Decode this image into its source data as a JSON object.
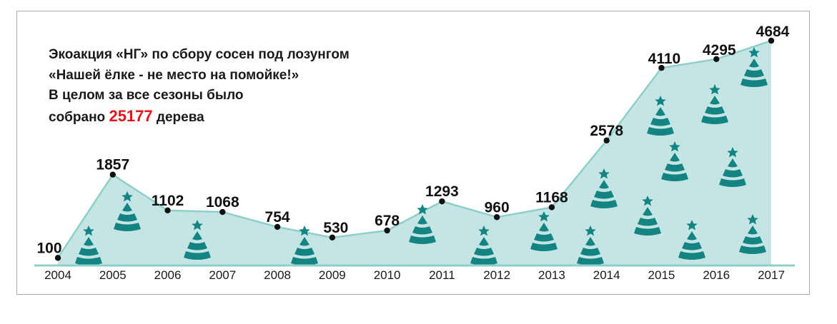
{
  "headline": {
    "line1": "Экоакция «НГ» по сбору сосен под лозунгом",
    "line2": "«Нашей ёлке - не место на помойке!»",
    "line3": "В целом за все сезоны было",
    "line4_prefix": "собрано",
    "total": "25177",
    "line4_suffix": "дерева"
  },
  "colors": {
    "area_fill": "#c4e5e3",
    "area_stroke": "#8fcfca",
    "tree": "#138482",
    "total_highlight": "#e3151b",
    "point": "#111111"
  },
  "chart_data": {
    "type": "area",
    "x": [
      "2004",
      "2005",
      "2006",
      "2007",
      "2008",
      "2009",
      "2010",
      "2011",
      "2012",
      "2013",
      "2014",
      "2015",
      "2016",
      "2017"
    ],
    "values": [
      100,
      1857,
      1102,
      1068,
      754,
      530,
      678,
      1293,
      960,
      1168,
      2578,
      4110,
      4295,
      4684
    ],
    "ylim": [
      0,
      4684
    ],
    "grid": false,
    "legend": "none",
    "decoration": "christmas-tree-icon"
  }
}
